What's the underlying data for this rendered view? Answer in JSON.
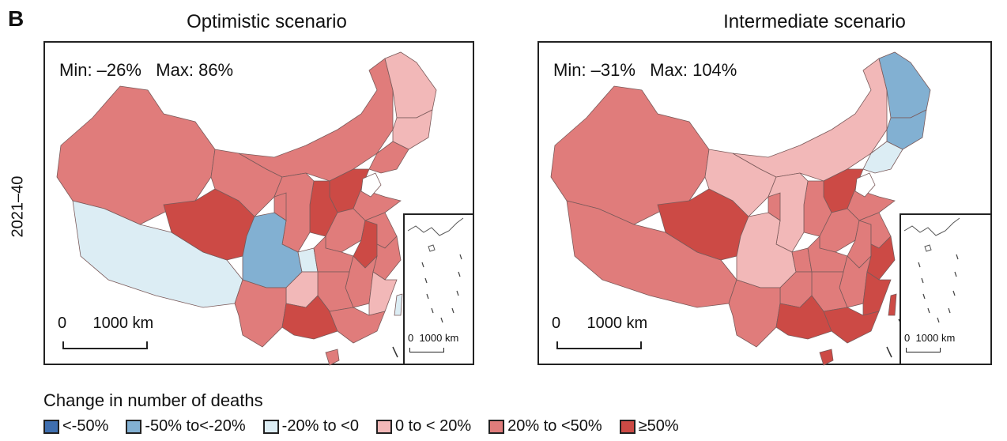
{
  "panel_label": "B",
  "period_label": "2021–40",
  "colors": {
    "lt_neg50": "#3f6fb0",
    "neg50_neg20": "#82b0d2",
    "neg20_0": "#dcedf4",
    "0_20": "#f2b8b8",
    "20_50": "#e07c7b",
    "ge50": "#cc4a45"
  },
  "panels": [
    {
      "title": "Optimistic scenario",
      "min_label": "Min: –26%",
      "max_label": "Max: 86%",
      "scale_label": "0      1000 km",
      "inset_scale_label": "0  1000 km",
      "regions": {
        "xinjiang": "20_50",
        "tibet": "neg20_0",
        "qinghai": "ge50",
        "gansu": "20_50",
        "inner_mongolia": "20_50",
        "heilongjiang": "0_20",
        "jilin": "0_20",
        "liaoning": "20_50",
        "hebei": "ge50",
        "shanxi": "ge50",
        "shaanxi": "20_50",
        "ningxia": "20_50",
        "shandong": "20_50",
        "henan": "20_50",
        "anhui": "ge50",
        "jiangsu": "20_50",
        "sichuan": "neg50_neg20",
        "chongqing": "neg20_0",
        "hubei": "20_50",
        "zhejiang": "20_50",
        "jiangxi": "20_50",
        "fujian": "0_20",
        "hunan": "20_50",
        "guizhou": "0_20",
        "yunnan": "20_50",
        "guangxi": "ge50",
        "guangdong": "20_50",
        "hainan": "20_50",
        "taiwan": "neg20_0"
      }
    },
    {
      "title": "Intermediate scenario",
      "min_label": "Min: –31%",
      "max_label": "Max: 104%",
      "scale_label": "0      1000 km",
      "inset_scale_label": "0  1000 km",
      "regions": {
        "xinjiang": "20_50",
        "tibet": "20_50",
        "qinghai": "ge50",
        "gansu": "0_20",
        "inner_mongolia": "0_20",
        "heilongjiang": "neg50_neg20",
        "jilin": "neg50_neg20",
        "liaoning": "neg20_0",
        "hebei": "ge50",
        "shanxi": "20_50",
        "shaanxi": "0_20",
        "ningxia": "20_50",
        "shandong": "20_50",
        "henan": "20_50",
        "anhui": "20_50",
        "jiangsu": "20_50",
        "sichuan": "0_20",
        "chongqing": "20_50",
        "hubei": "20_50",
        "zhejiang": "ge50",
        "jiangxi": "20_50",
        "fujian": "ge50",
        "hunan": "20_50",
        "guizhou": "20_50",
        "yunnan": "20_50",
        "guangxi": "ge50",
        "guangdong": "ge50",
        "hainan": "ge50",
        "taiwan": "ge50"
      }
    }
  ],
  "legend": {
    "title": "Change in number of deaths",
    "items": [
      {
        "key": "lt_neg50",
        "label": "<-50%"
      },
      {
        "key": "neg50_neg20",
        "label": "-50% to<-20%"
      },
      {
        "key": "neg20_0",
        "label": "-20% to <0"
      },
      {
        "key": "0_20",
        "label": "0 to < 20%"
      },
      {
        "key": "20_50",
        "label": "20% to <50%"
      },
      {
        "key": "ge50",
        "label": "≥50%"
      }
    ]
  }
}
